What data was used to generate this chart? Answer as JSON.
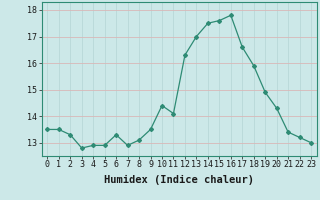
{
  "x": [
    0,
    1,
    2,
    3,
    4,
    5,
    6,
    7,
    8,
    9,
    10,
    11,
    12,
    13,
    14,
    15,
    16,
    17,
    18,
    19,
    20,
    21,
    22,
    23
  ],
  "y": [
    13.5,
    13.5,
    13.3,
    12.8,
    12.9,
    12.9,
    13.3,
    12.9,
    13.1,
    13.5,
    14.4,
    14.1,
    16.3,
    17.0,
    17.5,
    17.6,
    17.8,
    16.6,
    15.9,
    14.9,
    14.3,
    13.4,
    13.2,
    13.0
  ],
  "ylim": [
    12.5,
    18.3
  ],
  "yticks": [
    13,
    14,
    15,
    16,
    17,
    18
  ],
  "xticks": [
    0,
    1,
    2,
    3,
    4,
    5,
    6,
    7,
    8,
    9,
    10,
    11,
    12,
    13,
    14,
    15,
    16,
    17,
    18,
    19,
    20,
    21,
    22,
    23
  ],
  "xlabel": "Humidex (Indice chaleur)",
  "line_color": "#2e8b74",
  "marker": "D",
  "marker_size": 2.0,
  "bg_color": "#cce8e8",
  "vgrid_color": "#b8d8d8",
  "hgrid_color": "#d8b8b8",
  "label_fontsize": 7.5,
  "tick_fontsize": 6.0,
  "spine_color": "#2e8b74"
}
